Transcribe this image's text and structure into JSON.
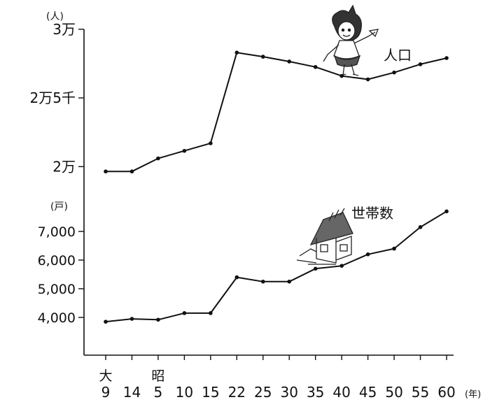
{
  "chart_data": {
    "type": "line",
    "x": [
      "9",
      "14",
      "5",
      "10",
      "15",
      "22",
      "25",
      "30",
      "35",
      "40",
      "45",
      "50",
      "55",
      "60"
    ],
    "era_labels": [
      {
        "text": "大",
        "at": "9"
      },
      {
        "text": "昭",
        "at": "5"
      }
    ],
    "x_unit": "(年)",
    "panels": [
      {
        "unit": "(人)",
        "y_ticks": [
          {
            "value": 20000,
            "label": "2万"
          },
          {
            "value": 25000,
            "label": "2万5千"
          },
          {
            "value": 30000,
            "label": "3万"
          }
        ],
        "ylim": [
          19000,
          30600
        ],
        "series": [
          {
            "name": "人口",
            "values": [
              19650,
              19650,
              20600,
              21150,
              21700,
              28300,
              28000,
              27650,
              27250,
              26600,
              26350,
              26850,
              27450,
              27900
            ]
          }
        ]
      },
      {
        "unit": "(戸)",
        "y_ticks": [
          {
            "value": 4000,
            "label": "4,000"
          },
          {
            "value": 5000,
            "label": "5,000"
          },
          {
            "value": 6000,
            "label": "6,000"
          },
          {
            "value": 7000,
            "label": "7,000"
          }
        ],
        "ylim": [
          3000,
          8000
        ],
        "series": [
          {
            "name": "世帯数",
            "values": [
              3850,
              3950,
              3920,
              4150,
              4150,
              5400,
              5250,
              5250,
              5700,
              5800,
              6200,
              6400,
              7150,
              7700
            ]
          }
        ]
      }
    ]
  }
}
